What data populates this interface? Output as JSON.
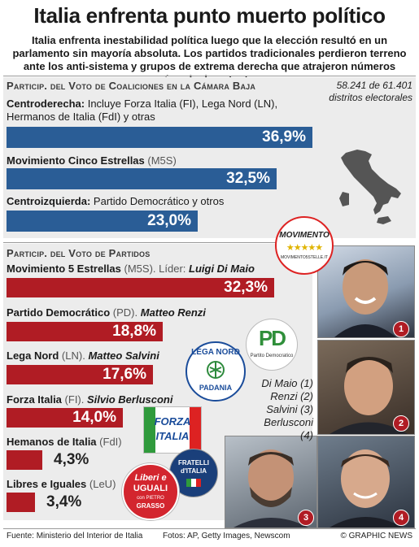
{
  "header": {
    "title": "Italia enfrenta punto muerto político",
    "subtitle": "Italia enfrenta inestabilidad política luego que la elección resultó en un parlamento sin mayoría absoluta. Los partidos tradicionales perdieron terreno ante los anti-sistema y grupos de extrema derecha que atrajeron números récords de votantes"
  },
  "coalitions": {
    "heading": "Particip. del Voto de Coaliciones en la Cámara Baja",
    "districts_note": "58.241 de 61.401 distritos electorales",
    "items": [
      {
        "name": "Centroderecha:",
        "detail": "Incluye Forza Italia (FI), Lega Nord (LN), Hermanos de Italia (FdI) y otras",
        "value_label": "36,9%"
      },
      {
        "name": "Movimiento Cinco Estrellas",
        "detail": "(M5S)",
        "value_label": "32,5%"
      },
      {
        "name": "Centroizquierda:",
        "detail": "Partido Democrático y otros",
        "value_label": "23,0%"
      }
    ]
  },
  "parties": {
    "heading": "Particip. del Voto de Partidos",
    "items": [
      {
        "name": "Movimiento 5 Estrellas",
        "abbr": "(M5S).",
        "leader_prefix": "Líder:",
        "leader": "Luigi Di Maio",
        "value_label": "32,3%"
      },
      {
        "name": "Partido Democrático",
        "abbr": "(PD).",
        "leader_prefix": "",
        "leader": "Matteo Renzi",
        "value_label": "18,8%"
      },
      {
        "name": "Lega Nord",
        "abbr": "(LN).",
        "leader_prefix": "",
        "leader": "Matteo Salvini",
        "value_label": "17,6%"
      },
      {
        "name": "Forza Italia",
        "abbr": "(FI).",
        "leader_prefix": "",
        "leader": "Silvio Berlusconi",
        "value_label": "14,0%"
      },
      {
        "name": "Hemanos de Italia",
        "abbr": "(FdI)",
        "leader_prefix": "",
        "leader": "",
        "value_label": "4,3%"
      },
      {
        "name": "Libres e Iguales",
        "abbr": "(LeU)",
        "leader_prefix": "",
        "leader": "",
        "value_label": "3,4%"
      }
    ]
  },
  "leaders_legend": [
    "Di Maio (1)",
    "Renzi (2)",
    "Salvini (3)",
    "Berlusconi (4)"
  ],
  "photo_badges": [
    "1",
    "2",
    "3",
    "4"
  ],
  "logos": {
    "m5s": "MOVIMENTO",
    "m5s_url": "MOVIMENTO5STELLE.IT",
    "pd_mark": "PD",
    "pd_name": "Partito Democratico",
    "lega_top": "LEGA NORD",
    "lega_bottom": "PADANIA",
    "forza_1": "FORZA",
    "forza_2": "ITALIA",
    "fdi_1": "FRATELLI",
    "fdi_2": "d'ITALIA",
    "leu_1": "Liberi e",
    "leu_2": "UGUALI",
    "leu_3": "con PIETRO",
    "leu_4": "GRASSO"
  },
  "footer": {
    "source": "Fuente: Ministerio del Interior de Italia",
    "photos": "Fotos: AP, Getty Images, Newscom",
    "credit": "© GRAPHIC NEWS"
  },
  "colors": {
    "coalition_bar": "#2a5d96",
    "party_bar": "#b01c24",
    "band": "#ececec"
  },
  "chart_data": [
    {
      "type": "bar",
      "title": "Particip. del Voto de Coaliciones en la Cámara Baja",
      "categories": [
        "Centroderecha",
        "Movimiento Cinco Estrellas",
        "Centroizquierda"
      ],
      "values": [
        36.9,
        32.5,
        23.0
      ],
      "unit": "%"
    },
    {
      "type": "bar",
      "title": "Particip. del Voto de Partidos",
      "categories": [
        "Movimiento 5 Estrellas",
        "Partido Democrático",
        "Lega Nord",
        "Forza Italia",
        "Hemanos de Italia",
        "Libres e Iguales"
      ],
      "values": [
        32.3,
        18.8,
        17.6,
        14.0,
        4.3,
        3.4
      ],
      "unit": "%"
    }
  ]
}
